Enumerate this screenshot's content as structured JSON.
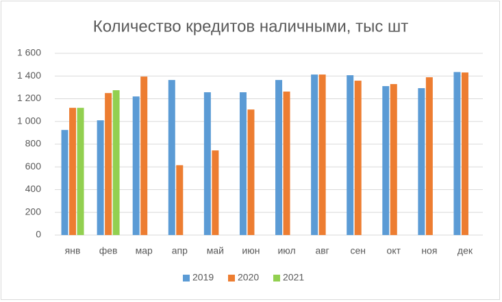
{
  "chart_data": {
    "type": "bar",
    "title": "Количество кредитов наличными, тыс шт",
    "categories": [
      "янв",
      "фев",
      "мар",
      "апр",
      "май",
      "июн",
      "июл",
      "авг",
      "сен",
      "окт",
      "ноя",
      "дек"
    ],
    "series": [
      {
        "name": "2019",
        "color": "#5b9bd5",
        "values": [
          925,
          1010,
          1220,
          1365,
          1257,
          1257,
          1365,
          1413,
          1407,
          1311,
          1293,
          1435
        ]
      },
      {
        "name": "2020",
        "color": "#ed7d31",
        "values": [
          1120,
          1250,
          1395,
          615,
          745,
          1105,
          1263,
          1413,
          1359,
          1329,
          1389,
          1431
        ]
      },
      {
        "name": "2021",
        "color": "#92d050",
        "values": [
          1120,
          1275,
          null,
          null,
          null,
          null,
          null,
          null,
          null,
          null,
          null,
          null
        ]
      }
    ],
    "ylim": [
      0,
      1600
    ],
    "yticks": [
      0,
      200,
      400,
      600,
      800,
      {
        "value": 1000,
        "label": "1 000"
      },
      {
        "value": 1200,
        "label": "1 200"
      },
      {
        "value": 1400,
        "label": "1 400"
      },
      {
        "value": 1600,
        "label": "1 600"
      }
    ],
    "grid": true,
    "legend": "bottom"
  }
}
